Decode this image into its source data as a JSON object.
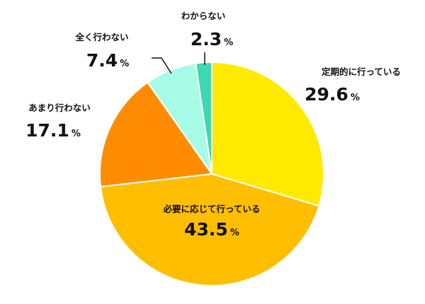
{
  "chart_data": {
    "type": "pie",
    "unit": "%",
    "slices": [
      {
        "label": "定期的に行っている",
        "value": 29.6,
        "color": "#FFEA00"
      },
      {
        "label": "必要に応じて行っている",
        "value": 43.5,
        "color": "#FFBE00"
      },
      {
        "label": "あまり行わない",
        "value": 17.1,
        "color": "#FF8C00"
      },
      {
        "label": "全く行わない",
        "value": 7.4,
        "color": "#A6FCE6"
      },
      {
        "label": "わからない",
        "value": 2.3,
        "color": "#3DD9B0"
      }
    ],
    "start_angle": "12 o'clock",
    "direction": "clockwise",
    "legend": "none"
  }
}
